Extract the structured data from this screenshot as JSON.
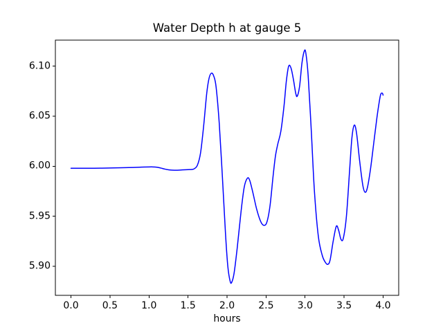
{
  "title": "Water Depth h at gauge 5",
  "colors": {
    "line": "#0000ff",
    "axis": "#000000",
    "text": "#000000",
    "background": "#ffffff"
  },
  "chart_data": {
    "type": "line",
    "title": "Water Depth h at gauge 5",
    "xlabel": "hours",
    "ylabel": "",
    "grid": false,
    "legend_position": "none",
    "xlim": [
      -0.2,
      4.2
    ],
    "ylim": [
      5.871,
      6.126
    ],
    "xticks": {
      "values": [
        0.0,
        0.5,
        1.0,
        1.5,
        2.0,
        2.5,
        3.0,
        3.5,
        4.0
      ],
      "labels": [
        "0.0",
        "0.5",
        "1.0",
        "1.5",
        "2.0",
        "2.5",
        "3.0",
        "3.5",
        "4.0"
      ]
    },
    "yticks": {
      "values": [
        5.9,
        5.95,
        6.0,
        6.05,
        6.1
      ],
      "labels": [
        "5.90",
        "5.95",
        "6.00",
        "6.05",
        "6.10"
      ]
    },
    "series": [
      {
        "name": "Water Depth h",
        "color": "#0000ff",
        "line_width": 1.5,
        "x": [
          0.0,
          0.1,
          0.2,
          0.3,
          0.4,
          0.5,
          0.6,
          0.7,
          0.8,
          0.9,
          1.0,
          1.05,
          1.1,
          1.15,
          1.2,
          1.25,
          1.3,
          1.35,
          1.4,
          1.45,
          1.5,
          1.55,
          1.58,
          1.62,
          1.66,
          1.7,
          1.74,
          1.77,
          1.8,
          1.83,
          1.86,
          1.9,
          1.94,
          1.98,
          2.01,
          2.04,
          2.06,
          2.09,
          2.13,
          2.18,
          2.22,
          2.26,
          2.29,
          2.33,
          2.38,
          2.43,
          2.47,
          2.51,
          2.55,
          2.59,
          2.62,
          2.65,
          2.69,
          2.73,
          2.76,
          2.79,
          2.82,
          2.85,
          2.88,
          2.9,
          2.93,
          2.96,
          2.99,
          3.01,
          3.04,
          3.08,
          3.12,
          3.17,
          3.22,
          3.26,
          3.29,
          3.32,
          3.36,
          3.4,
          3.43,
          3.46,
          3.49,
          3.53,
          3.57,
          3.6,
          3.63,
          3.66,
          3.7,
          3.74,
          3.77,
          3.8,
          3.84,
          3.88,
          3.92,
          3.95,
          3.97,
          3.99,
          4.0
        ],
        "y": [
          5.998,
          5.998,
          5.998,
          5.998,
          5.9981,
          5.9982,
          5.9984,
          5.9986,
          5.9988,
          5.9991,
          5.9993,
          5.9993,
          5.999,
          5.9982,
          5.9972,
          5.9964,
          5.9961,
          5.996,
          5.9962,
          5.9964,
          5.9966,
          5.9968,
          5.9975,
          6.001,
          6.013,
          6.04,
          6.073,
          6.088,
          6.093,
          6.09,
          6.079,
          6.043,
          5.99,
          5.933,
          5.9,
          5.885,
          5.884,
          5.893,
          5.918,
          5.955,
          5.979,
          5.988,
          5.986,
          5.974,
          5.957,
          5.945,
          5.941,
          5.944,
          5.96,
          5.99,
          6.01,
          6.022,
          6.035,
          6.06,
          6.085,
          6.1,
          6.098,
          6.087,
          6.073,
          6.07,
          6.08,
          6.103,
          6.115,
          6.113,
          6.09,
          6.035,
          5.975,
          5.93,
          5.911,
          5.904,
          5.902,
          5.906,
          5.925,
          5.94,
          5.936,
          5.927,
          5.928,
          5.95,
          5.995,
          6.028,
          6.041,
          6.033,
          6.005,
          5.981,
          5.974,
          5.979,
          5.998,
          6.023,
          6.048,
          6.064,
          6.072,
          6.073,
          6.071
        ]
      }
    ]
  }
}
